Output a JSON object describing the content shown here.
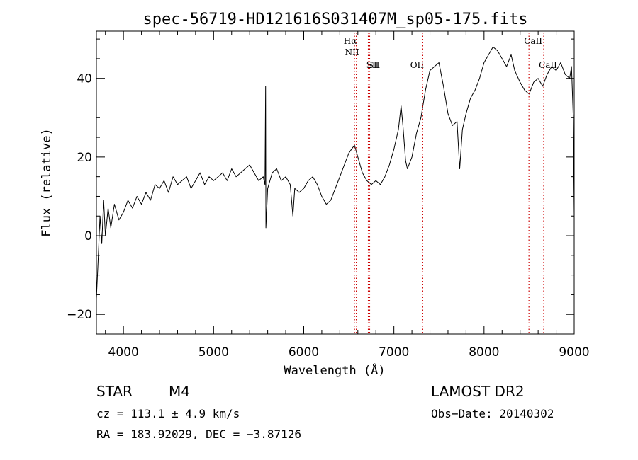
{
  "chart_data": {
    "type": "line",
    "title": "spec-56719-HD121616S031407M_sp05-175.fits",
    "xlabel": "Wavelength (Å)",
    "ylabel": "Flux (relative)",
    "xlim": [
      3700,
      9000
    ],
    "ylim": [
      -25,
      52
    ],
    "x_ticks": [
      4000,
      5000,
      6000,
      7000,
      8000,
      9000
    ],
    "y_ticks": [
      -20,
      0,
      20,
      40
    ],
    "x_tick_labels": [
      "4000",
      "5000",
      "6000",
      "7000",
      "8000",
      "9000"
    ],
    "y_tick_labels": [
      "−20",
      "0",
      "20",
      "40"
    ],
    "grid": false,
    "line_color": "#000000",
    "marker_color": "#cc0000",
    "series": [
      {
        "x": [
          3700,
          3720,
          3740,
          3760,
          3780,
          3800,
          3830,
          3860,
          3900,
          3950,
          4000,
          4050,
          4100,
          4150,
          4200,
          4250,
          4300,
          4350,
          4400,
          4450,
          4500,
          4550,
          4600,
          4650,
          4700,
          4750,
          4800,
          4850,
          4900,
          4950,
          5000,
          5050,
          5100,
          5150,
          5200,
          5250,
          5300,
          5350,
          5400,
          5450,
          5500,
          5550,
          5570,
          5577,
          5580,
          5600,
          5650,
          5700,
          5750,
          5800,
          5850,
          5880,
          5900,
          5950,
          6000,
          6050,
          6100,
          6150,
          6200,
          6250,
          6300,
          6350,
          6400,
          6450,
          6500,
          6530,
          6563,
          6600,
          6650,
          6700,
          6750,
          6800,
          6850,
          6900,
          6950,
          7000,
          7050,
          7080,
          7100,
          7130,
          7150,
          7200,
          7250,
          7300,
          7350,
          7400,
          7450,
          7500,
          7550,
          7600,
          7650,
          7700,
          7730,
          7760,
          7800,
          7850,
          7900,
          7950,
          8000,
          8050,
          8100,
          8150,
          8200,
          8250,
          8300,
          8340,
          8400,
          8450,
          8500,
          8550,
          8600,
          8650,
          8700,
          8750,
          8800,
          8850,
          8900,
          8950,
          8970,
          8990,
          9000
        ],
        "y": [
          -16,
          -6,
          5,
          -2,
          9,
          0,
          7,
          2,
          8,
          4,
          6,
          9,
          7,
          10,
          8,
          11,
          9,
          13,
          12,
          14,
          11,
          15,
          13,
          14,
          15,
          12,
          14,
          16,
          13,
          15,
          14,
          15,
          16,
          14,
          17,
          15,
          16,
          17,
          18,
          16,
          14,
          15,
          13,
          38,
          2,
          12,
          16,
          17,
          14,
          15,
          13,
          5,
          12,
          11,
          12,
          14,
          15,
          13,
          10,
          8,
          9,
          12,
          15,
          18,
          21,
          22,
          23,
          20,
          16,
          14,
          13,
          14,
          13,
          15,
          18,
          22,
          27,
          33,
          28,
          19,
          17,
          20,
          26,
          30,
          37,
          42,
          43,
          44,
          38,
          31,
          28,
          29,
          17,
          27,
          31,
          35,
          37,
          40,
          44,
          46,
          48,
          47,
          45,
          43,
          46,
          42,
          39,
          37,
          36,
          39,
          40,
          38,
          41,
          43,
          42,
          44,
          41,
          40,
          43,
          30,
          5
        ]
      }
    ],
    "lines": [
      {
        "name": "Hα",
        "wavelength": 6563
      },
      {
        "name": "NII",
        "wavelength": 6583
      },
      {
        "name": "SII",
        "wavelength": 6716
      },
      {
        "name": "SII",
        "wavelength": 6731
      },
      {
        "name": "OII",
        "wavelength": 7320
      },
      {
        "name": "CaII",
        "wavelength": 8498
      },
      {
        "name": "CaII",
        "wavelength": 8662
      }
    ]
  },
  "info": {
    "class": "STAR",
    "subclass": "M4",
    "survey": "LAMOST DR2",
    "cz": "cz = 113.1 ± 4.9 km/s",
    "obs_date": "Obs−Date: 20140302",
    "radec": "RA = 183.92029, DEC =  −3.87126"
  }
}
